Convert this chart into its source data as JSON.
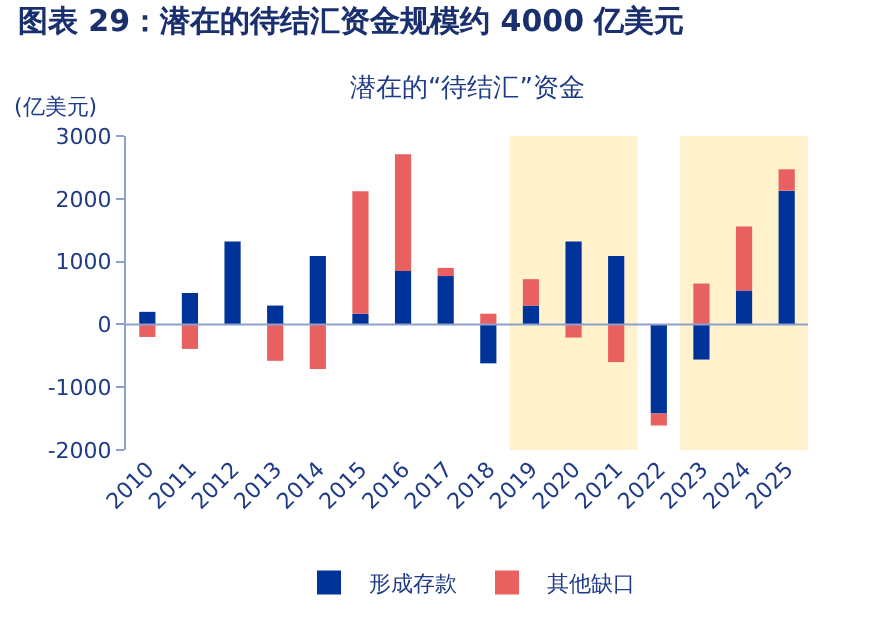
{
  "chart_data": {
    "type": "bar",
    "title": "图表 29：潜在的待结汇资金规模约 4000 亿美元",
    "subtitle": "潜在的“待结汇”资金",
    "ylabel": "(亿美元)",
    "categories": [
      "2010",
      "2011",
      "2012",
      "2013",
      "2014",
      "2015",
      "2016",
      "2017",
      "2018",
      "2019",
      "2020",
      "2021",
      "2022",
      "2023",
      "2024",
      "2025"
    ],
    "stacked": true,
    "series": [
      {
        "name": "形成存款",
        "color": "#003399",
        "values": [
          200,
          500,
          1320,
          300,
          1090,
          170,
          850,
          770,
          -620,
          300,
          1320,
          1090,
          -1420,
          -560,
          540,
          2130
        ]
      },
      {
        "name": "其他缺口",
        "color": "#e96060",
        "values": [
          -200,
          -390,
          0,
          -580,
          -710,
          1950,
          1860,
          130,
          170,
          420,
          -210,
          -600,
          -190,
          650,
          1020,
          340
        ]
      }
    ],
    "ylim": [
      -2000,
      3000
    ],
    "yticks": [
      -2000,
      -1000,
      0,
      1000,
      2000,
      3000
    ],
    "bands": [
      {
        "axis": "x",
        "from": "2019",
        "to": "2021",
        "color": "#fff2cc"
      },
      {
        "axis": "x",
        "from": "2023",
        "to": "2025",
        "color": "#fff2cc"
      }
    ],
    "ref_lines": [
      {
        "axis": "y",
        "value": 0,
        "color": "#8ea0cc"
      }
    ],
    "grid": false,
    "legend": "bottom"
  }
}
